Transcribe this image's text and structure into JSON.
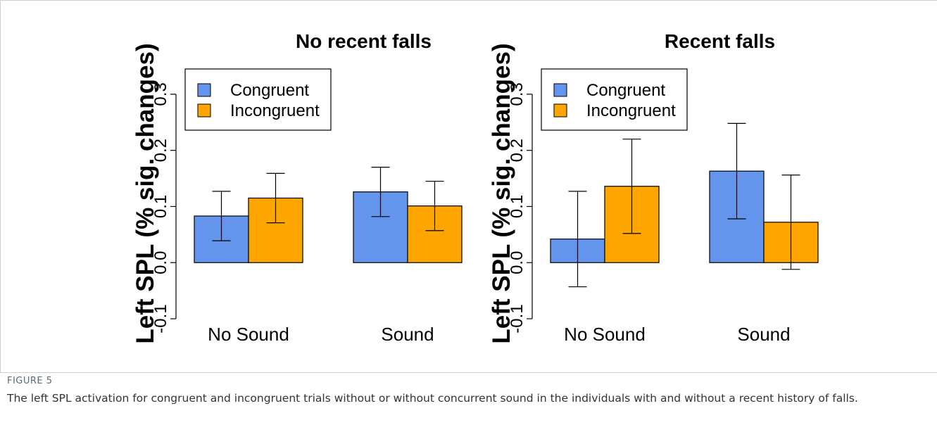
{
  "figure_label": "FIGURE 5",
  "caption": "The left SPL activation for congruent and incongruent trials without or without concurrent sound in the individuals with and without a recent history of falls.",
  "chart_data": [
    {
      "type": "bar",
      "title": "No recent falls",
      "y_label": "Left SPL (% sig. changes)",
      "categories": [
        "No Sound",
        "Sound"
      ],
      "series": [
        {
          "name": "Congruent",
          "color": "#6495ed",
          "values": [
            0.083,
            0.126
          ],
          "errors": [
            0.044,
            0.044
          ]
        },
        {
          "name": "Incongruent",
          "color": "#ffa500",
          "values": [
            0.115,
            0.101
          ],
          "errors": [
            0.044,
            0.044
          ]
        }
      ],
      "ylim": [
        -0.11,
        0.355
      ],
      "yticks": [
        -0.1,
        {
          "value": 0,
          "label": "0.0"
        },
        0.1,
        0.2,
        0.3
      ],
      "legend": "top-left"
    },
    {
      "type": "bar",
      "title": "Recent falls",
      "y_label": "Left SPL (% sig. changes)",
      "categories": [
        "No Sound",
        "Sound"
      ],
      "series": [
        {
          "name": "Congruent",
          "color": "#6495ed",
          "values": [
            0.042,
            0.163
          ],
          "errors": [
            0.085,
            0.085
          ]
        },
        {
          "name": "Incongruent",
          "color": "#ffa500",
          "values": [
            0.136,
            0.072
          ],
          "errors": [
            0.084,
            0.084
          ]
        }
      ],
      "ylim": [
        -0.11,
        0.355
      ],
      "yticks": [
        -0.1,
        {
          "value": 0,
          "label": "0.0"
        },
        0.1,
        0.2,
        0.3
      ],
      "legend": "top-left"
    }
  ]
}
